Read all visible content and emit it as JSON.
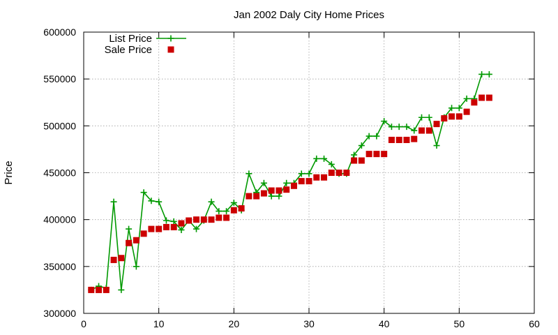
{
  "chart_data": {
    "type": "line",
    "title": "Jan 2002 Daly City Home Prices",
    "xlabel": "",
    "ylabel": "Price",
    "xlim": [
      0,
      60
    ],
    "ylim": [
      300000,
      600000
    ],
    "x_ticks": [
      0,
      10,
      20,
      30,
      40,
      50,
      60
    ],
    "y_ticks": [
      300000,
      350000,
      400000,
      450000,
      500000,
      550000,
      600000
    ],
    "x_tick_labels": [
      "0",
      "10",
      "20",
      "30",
      "40",
      "50",
      "60"
    ],
    "y_tick_labels": [
      "300000",
      "350000",
      "400000",
      "450000",
      "500000",
      "550000",
      "600000"
    ],
    "grid": true,
    "legend_position": "top-left",
    "series": [
      {
        "name": "List Price",
        "style": "linespoints",
        "marker": "plus",
        "color": "#009900",
        "x": [
          1,
          2,
          3,
          4,
          5,
          6,
          7,
          8,
          9,
          10,
          11,
          12,
          13,
          14,
          15,
          16,
          17,
          18,
          19,
          20,
          21,
          22,
          23,
          24,
          25,
          26,
          27,
          28,
          29,
          30,
          31,
          32,
          33,
          34,
          35,
          36,
          37,
          38,
          39,
          40,
          41,
          42,
          43,
          44,
          45,
          46,
          47,
          48,
          49,
          50,
          51,
          52,
          53,
          54
        ],
        "values": [
          325000,
          329000,
          327000,
          419000,
          325000,
          390000,
          350000,
          429000,
          420000,
          419000,
          399000,
          398000,
          389000,
          399000,
          390000,
          399000,
          419000,
          409000,
          409000,
          418000,
          410000,
          449000,
          429000,
          439000,
          425000,
          425000,
          439000,
          439000,
          449000,
          449000,
          465000,
          465000,
          459000,
          449000,
          449000,
          469000,
          479000,
          489000,
          489000,
          505000,
          499000,
          499000,
          499000,
          495000,
          509000,
          509000,
          479000,
          509000,
          519000,
          519000,
          529000,
          529000,
          555000,
          555000
        ]
      },
      {
        "name": "Sale Price",
        "style": "points",
        "marker": "square",
        "color": "#cc0000",
        "x": [
          1,
          2,
          3,
          4,
          5,
          6,
          7,
          8,
          9,
          10,
          11,
          12,
          13,
          14,
          15,
          16,
          17,
          18,
          19,
          20,
          21,
          22,
          23,
          24,
          25,
          26,
          27,
          28,
          29,
          30,
          31,
          32,
          33,
          34,
          35,
          36,
          37,
          38,
          39,
          40,
          41,
          42,
          43,
          44,
          45,
          46,
          47,
          48,
          49,
          50,
          51,
          52,
          53,
          54
        ],
        "values": [
          325000,
          325000,
          325000,
          357000,
          359000,
          375000,
          378000,
          385000,
          390000,
          390000,
          392000,
          392000,
          396000,
          399000,
          400000,
          400000,
          400000,
          402000,
          402000,
          410000,
          412000,
          425000,
          425000,
          428000,
          431000,
          431000,
          432000,
          436000,
          441000,
          441000,
          445000,
          445000,
          450000,
          450000,
          450000,
          463000,
          463000,
          470000,
          470000,
          470000,
          485000,
          485000,
          485000,
          486000,
          495000,
          495000,
          502000,
          508000,
          510000,
          510000,
          515000,
          525000,
          530000,
          530000
        ]
      }
    ]
  }
}
